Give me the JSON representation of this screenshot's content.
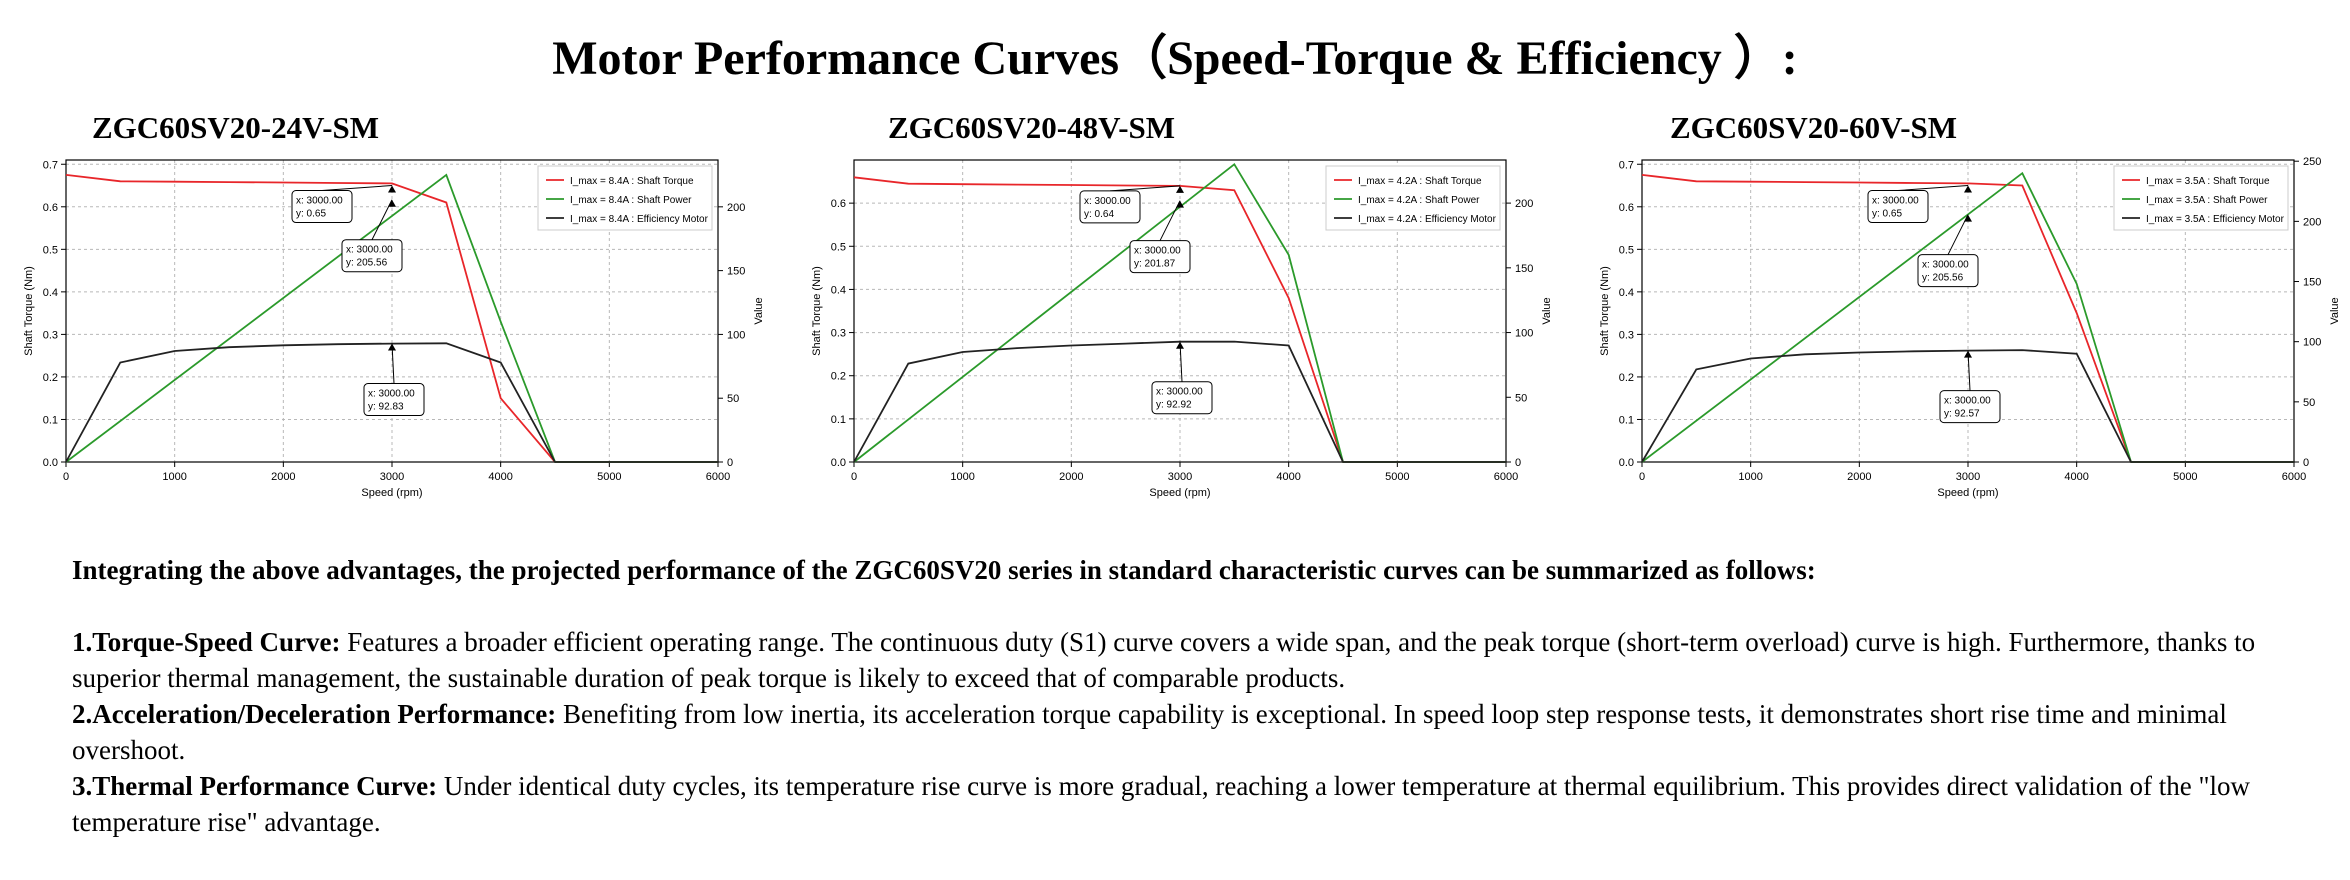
{
  "title": "Motor Performance Curves（Speed-Torque & Efficiency ）:",
  "chart_data": [
    {
      "type": "line",
      "title": "ZGC60SV20-24V-SM",
      "xlabel": "Speed (rpm)",
      "ylabel": "Shaft Torque (Nm)",
      "y2label": "Value",
      "xlim": [
        0,
        6000
      ],
      "ylim": [
        0,
        0.71
      ],
      "y2lim": [
        0,
        236.7
      ],
      "x_ticks": [
        "0",
        "1000",
        "2000",
        "3000",
        "4000",
        "5000",
        "6000"
      ],
      "y_ticks": [
        "0.0",
        "0.1",
        "0.2",
        "0.3",
        "0.4",
        "0.5",
        "0.6",
        "0.7"
      ],
      "y2_ticks": [
        "0",
        "50",
        "100",
        "150",
        "200"
      ],
      "legend_position": "top-right",
      "series": [
        {
          "name": "I_max=8.4A : Shaft Torque",
          "axis": "left",
          "color": "#e8262a",
          "x": [
            0,
            500,
            1000,
            1500,
            2000,
            2500,
            3000,
            3500,
            4000,
            4500,
            5000,
            5500,
            6000
          ],
          "y": [
            0.675,
            0.66,
            0.659,
            0.658,
            0.657,
            0.656,
            0.655,
            0.61,
            0.15,
            0,
            0,
            0,
            0
          ]
        },
        {
          "name": "I_max=8.4A : Shaft Power",
          "axis": "right",
          "color": "#2b9a2b",
          "x": [
            0,
            3500,
            4000,
            4500,
            5000,
            5500,
            6000
          ],
          "y": [
            0,
            225,
            110,
            0,
            0,
            0,
            0
          ]
        },
        {
          "name": "I_max=8.4A : Efficiency Motor",
          "axis": "right",
          "color": "#222222",
          "x": [
            0,
            500,
            1000,
            1500,
            2000,
            2500,
            3000,
            3500,
            4000,
            4500,
            5000,
            5500,
            6000
          ],
          "y": [
            0,
            78,
            87,
            90,
            91.5,
            92.3,
            92.83,
            93,
            78,
            0,
            0,
            0,
            0
          ]
        }
      ],
      "legend_labels": [
        "I_max = 8.4A : Shaft Torque",
        "I_max = 8.4A : Shaft Power",
        "I_max = 8.4A : Efficiency Motor"
      ],
      "annotations": [
        {
          "x": 3000,
          "y": 0.65,
          "axis": "left",
          "lines": [
            "x: 3000.00",
            "y: 0.65"
          ]
        },
        {
          "x": 3000,
          "y": 205.56,
          "axis": "right",
          "lines": [
            "x: 3000.00",
            "y: 205.56"
          ]
        },
        {
          "x": 3000,
          "y": 92.83,
          "axis": "right",
          "lines": [
            "x: 3000.00",
            "y: 92.83"
          ]
        }
      ]
    },
    {
      "type": "line",
      "title": "ZGC60SV20-48V-SM",
      "xlabel": "Speed (rpm)",
      "ylabel": "Shaft Torque (Nm)",
      "y2label": "Value",
      "xlim": [
        0,
        6000
      ],
      "ylim": [
        0,
        0.7
      ],
      "y2lim": [
        0,
        233.3
      ],
      "x_ticks": [
        "0",
        "1000",
        "2000",
        "3000",
        "4000",
        "5000",
        "6000"
      ],
      "y_ticks": [
        "0.0",
        "0.1",
        "0.2",
        "0.3",
        "0.4",
        "0.5",
        "0.6"
      ],
      "y2_ticks": [
        "0",
        "50",
        "100",
        "150",
        "200"
      ],
      "legend_position": "top-right",
      "series": [
        {
          "name": "I_max=4.2A : Shaft Torque",
          "axis": "left",
          "color": "#e8262a",
          "x": [
            0,
            500,
            1000,
            1500,
            2000,
            2500,
            3000,
            3500,
            4000,
            4500,
            5000,
            5500,
            6000
          ],
          "y": [
            0.66,
            0.645,
            0.644,
            0.643,
            0.642,
            0.641,
            0.64,
            0.63,
            0.38,
            0,
            0,
            0,
            0
          ]
        },
        {
          "name": "I_max=4.2A : Shaft Power",
          "axis": "right",
          "color": "#2b9a2b",
          "x": [
            0,
            3500,
            4000,
            4500,
            5000,
            5500,
            6000
          ],
          "y": [
            0,
            230,
            160,
            0,
            0,
            0,
            0
          ]
        },
        {
          "name": "I_max=4.2A : Efficiency Motor",
          "axis": "right",
          "color": "#222222",
          "x": [
            0,
            500,
            1000,
            1500,
            2000,
            2500,
            3000,
            3500,
            4000,
            4500,
            5000,
            5500,
            6000
          ],
          "y": [
            0,
            76,
            85,
            88,
            90,
            91.5,
            92.92,
            93,
            90,
            0,
            0,
            0,
            0
          ]
        }
      ],
      "legend_labels": [
        "I_max = 4.2A : Shaft Torque",
        "I_max = 4.2A : Shaft Power",
        "I_max = 4.2A : Efficiency Motor"
      ],
      "annotations": [
        {
          "x": 3000,
          "y": 0.64,
          "axis": "left",
          "lines": [
            "x: 3000.00",
            "y: 0.64"
          ]
        },
        {
          "x": 3000,
          "y": 201.87,
          "axis": "right",
          "lines": [
            "x: 3000.00",
            "y: 201.87"
          ]
        },
        {
          "x": 3000,
          "y": 92.92,
          "axis": "right",
          "lines": [
            "x: 3000.00",
            "y: 92.92"
          ]
        }
      ]
    },
    {
      "type": "line",
      "title": "ZGC60SV20-60V-SM",
      "xlabel": "Speed (rpm)",
      "ylabel": "Shaft Torque (Nm)",
      "y2label": "Value",
      "xlim": [
        0,
        6000
      ],
      "ylim": [
        0,
        0.71
      ],
      "y2lim": [
        0,
        251
      ],
      "x_ticks": [
        "0",
        "1000",
        "2000",
        "3000",
        "4000",
        "5000",
        "6000"
      ],
      "y_ticks": [
        "0.0",
        "0.1",
        "0.2",
        "0.3",
        "0.4",
        "0.5",
        "0.6",
        "0.7"
      ],
      "y2_ticks": [
        "0",
        "50",
        "100",
        "150",
        "200",
        "250"
      ],
      "legend_position": "top-right",
      "series": [
        {
          "name": "I_max=3.5A : Shaft Torque",
          "axis": "left",
          "color": "#e8262a",
          "x": [
            0,
            500,
            1000,
            1500,
            2000,
            2500,
            3000,
            3500,
            4000,
            4500,
            5000,
            5500,
            6000
          ],
          "y": [
            0.675,
            0.66,
            0.659,
            0.658,
            0.657,
            0.656,
            0.655,
            0.65,
            0.35,
            0,
            0,
            0,
            0
          ]
        },
        {
          "name": "I_max=3.5A : Shaft Power",
          "axis": "right",
          "color": "#2b9a2b",
          "x": [
            0,
            3500,
            4000,
            4500,
            5000,
            5500,
            6000
          ],
          "y": [
            0,
            240,
            148,
            0,
            0,
            0,
            0
          ]
        },
        {
          "name": "I_max=3.5A : Efficiency Motor",
          "axis": "right",
          "color": "#222222",
          "x": [
            0,
            500,
            1000,
            1500,
            2000,
            2500,
            3000,
            3500,
            4000,
            4500,
            5000,
            5500,
            6000
          ],
          "y": [
            0,
            77,
            86,
            89.5,
            91,
            92,
            92.57,
            93,
            90,
            0,
            0,
            0,
            0
          ]
        }
      ],
      "legend_labels": [
        "I_max = 3.5A : Shaft Torque",
        "I_max = 3.5A : Shaft Power",
        "I_max = 3.5A : Efficiency Motor"
      ],
      "annotations": [
        {
          "x": 3000,
          "y": 0.65,
          "axis": "left",
          "lines": [
            "x: 3000.00",
            "y: 0.65"
          ]
        },
        {
          "x": 3000,
          "y": 205.56,
          "axis": "right",
          "lines": [
            "x: 3000.00",
            "y: 205.56"
          ]
        },
        {
          "x": 3000,
          "y": 92.57,
          "axis": "right",
          "lines": [
            "x: 3000.00",
            "y: 92.57"
          ]
        }
      ]
    }
  ],
  "summary": {
    "heading": "Integrating the above advantages, the projected performance of the ZGC60SV20 series in standard characteristic curves can be summarized as follows:",
    "items": [
      {
        "label": "1.Torque-Speed Curve:",
        "text": " Features a broader efficient operating range. The continuous duty (S1) curve covers a wide span, and the peak torque (short-term overload) curve is high. Furthermore, thanks to superior thermal management, the sustainable duration of peak torque is likely to exceed that of comparable products."
      },
      {
        "label": "2.Acceleration/Deceleration Performance:",
        "text": " Benefiting from low inertia, its acceleration torque capability is exceptional. In speed loop step response tests, it demonstrates short rise time and minimal overshoot."
      },
      {
        "label": "3.Thermal Performance Curve:",
        "text": " Under identical duty cycles, its temperature rise curve is more gradual, reaching a lower temperature at thermal equilibrium. This provides direct validation of the \"low temperature rise\" advantage."
      }
    ]
  }
}
